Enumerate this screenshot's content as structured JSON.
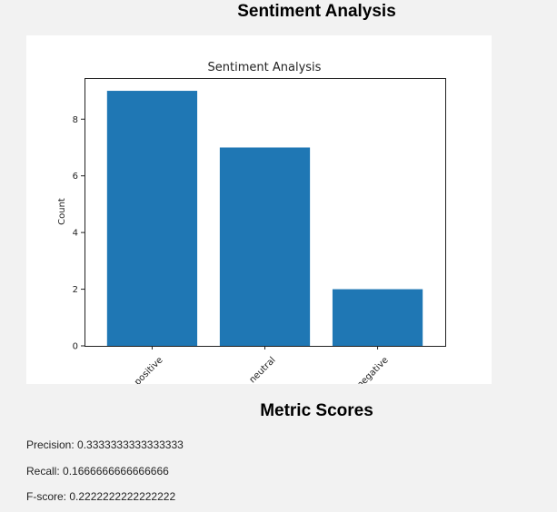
{
  "page": {
    "heading": "Sentiment Analysis",
    "metrics_heading": "Metric Scores"
  },
  "metrics": {
    "precision": "Precision: 0.3333333333333333",
    "recall": "Recall: 0.1666666666666666",
    "fscore": "F-score: 0.2222222222222222"
  },
  "chart_data": {
    "type": "bar",
    "title": "Sentiment Analysis",
    "xlabel": "",
    "ylabel": "Count",
    "categories": [
      "positive",
      "neutral",
      "negative"
    ],
    "values": [
      9,
      7,
      2
    ],
    "ylim": [
      0,
      9.45
    ],
    "yticks": [
      0,
      2,
      4,
      6,
      8
    ],
    "bar_color": "#1f77b4",
    "grid": false,
    "xtick_rotation_deg": 45
  }
}
